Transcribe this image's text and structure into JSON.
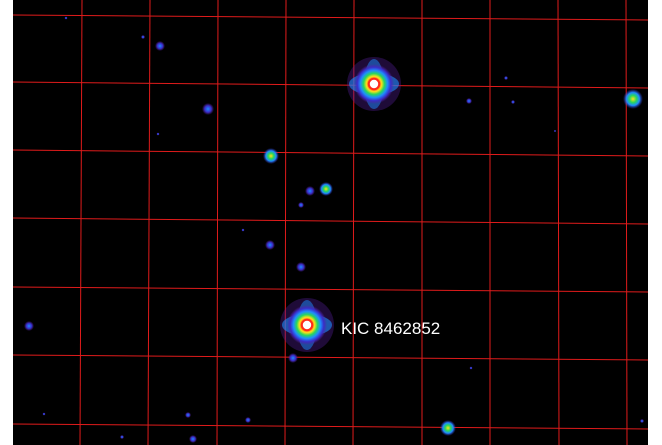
{
  "target": {
    "label": "KIC 8462852"
  },
  "colors": {
    "background": "#000000",
    "grid": "#e01b1b",
    "label": "#ffffff",
    "margin": "#ffffff",
    "star_palette": [
      "#ffffff",
      "#ff2a1a",
      "#ffe11a",
      "#27d85a",
      "#1e8cff",
      "#3a2cc8",
      "#5a1fa0"
    ]
  }
}
